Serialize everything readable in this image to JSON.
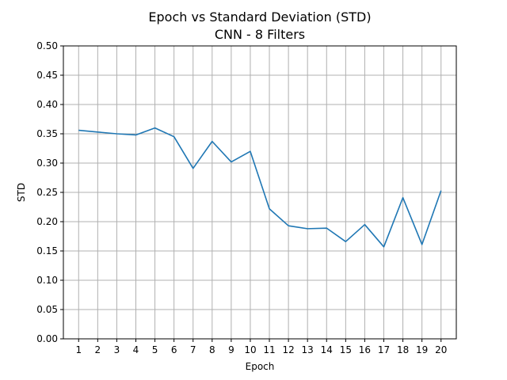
{
  "chart_data": {
    "type": "line",
    "title": "Epoch vs Standard Deviation (STD)",
    "subtitle": "CNN - 8 Filters",
    "xlabel": "Epoch",
    "ylabel": "STD",
    "x": [
      1,
      2,
      3,
      4,
      5,
      6,
      7,
      8,
      9,
      10,
      11,
      12,
      13,
      14,
      15,
      16,
      17,
      18,
      19,
      20
    ],
    "series": [
      {
        "values": [
          0.356,
          0.353,
          0.35,
          0.348,
          0.36,
          0.345,
          0.291,
          0.337,
          0.302,
          0.32,
          0.222,
          0.193,
          0.188,
          0.189,
          0.166,
          0.195,
          0.157,
          0.241,
          0.161,
          0.253
        ],
        "color": "#1f77b4"
      }
    ],
    "xlim": [
      0.2,
      20.8
    ],
    "ylim": [
      0,
      0.5
    ],
    "yticks": [
      "0.00",
      "0.05",
      "0.10",
      "0.15",
      "0.20",
      "0.25",
      "0.30",
      "0.35",
      "0.40",
      "0.45",
      "0.50"
    ],
    "xticks": [
      "1",
      "2",
      "3",
      "4",
      "5",
      "6",
      "7",
      "8",
      "9",
      "10",
      "11",
      "12",
      "13",
      "14",
      "15",
      "16",
      "17",
      "18",
      "19",
      "20"
    ],
    "grid": true
  }
}
